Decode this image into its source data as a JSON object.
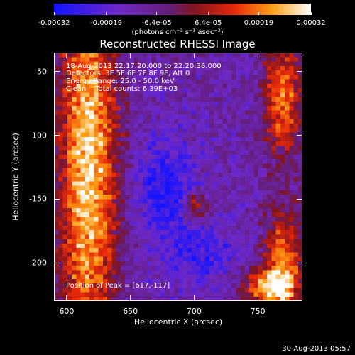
{
  "chart_data": {
    "type": "heatmap",
    "title": "Reconstructed RHESSI Image",
    "xlabel": "Heliocentric X (arcsec)",
    "ylabel": "Heliocentric Y (arcsec)",
    "xlim": [
      590,
      785
    ],
    "ylim": [
      -230,
      -35
    ],
    "x_ticks": [
      "600",
      "650",
      "700",
      "750"
    ],
    "y_ticks": [
      "-50",
      "-100",
      "-150",
      "-200"
    ],
    "x_tick_values": [
      600,
      650,
      700,
      750
    ],
    "y_tick_values": [
      -50,
      -100,
      -150,
      -200
    ],
    "colorbar": {
      "tick_labels": [
        "-0.00032",
        "-0.00019",
        "-6.4e-05",
        "6.4e-05",
        "0.00019",
        "0.00032"
      ],
      "tick_values": [
        -0.00032,
        -0.00019,
        -6.4e-05,
        6.4e-05,
        0.00019,
        0.00032
      ],
      "range": [
        -0.00032,
        0.00032
      ],
      "units": "(photons cm⁻² s⁻¹ asec⁻²)"
    },
    "peak": {
      "x": 617,
      "y": -117
    },
    "annotations": [
      "18-Aug-2013 22:17:20.000 to 22:20:36.000",
      "Detectors: 3F 5F 6F 7F 8F 9F, Att 0",
      "Energy Range: 25.0 - 50.0 keV",
      "Clean    Total counts: 6.39E+03",
      "Position of Peak = [617,-117]"
    ]
  },
  "footer": {
    "date": "30-Aug-2013 05:57"
  },
  "colors": {
    "background": "#000000",
    "text": "#ffffff"
  }
}
